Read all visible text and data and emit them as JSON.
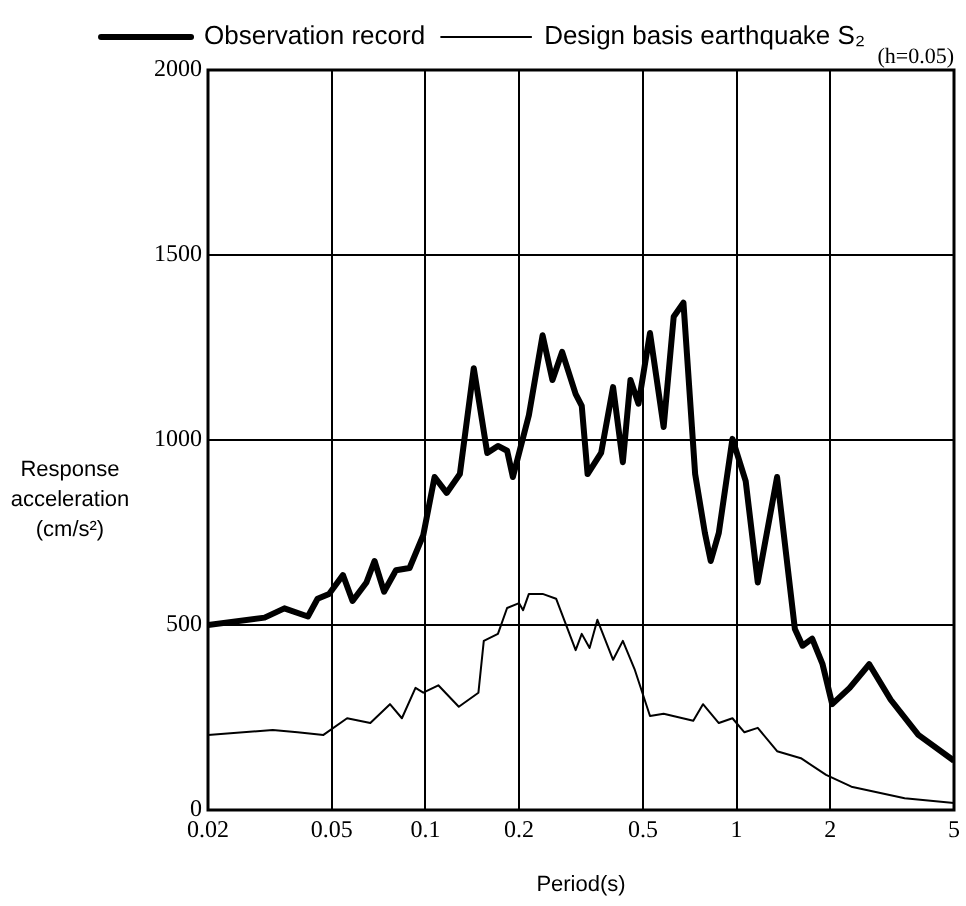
{
  "chart_data": {
    "type": "line",
    "xlabel": "Period(s)",
    "ylabel": "Response acceleration (cm/s²)",
    "annotations": [
      "(h=0.05)"
    ],
    "log": "x",
    "xlim": [
      0.02,
      5
    ],
    "xticks": [
      0.02,
      0.05,
      0.1,
      0.2,
      0.5,
      1,
      2,
      5
    ],
    "ylim": [
      0,
      2000
    ],
    "yticks": [
      0,
      500,
      1000,
      1500,
      2000
    ],
    "grid": true,
    "legend": "top",
    "marker": "none",
    "line_style": "solid",
    "series": [
      {
        "name": "Observation record",
        "color": "#000000",
        "x": [
          0.02,
          0.0304,
          0.0352,
          0.0419,
          0.045,
          0.049,
          0.0543,
          0.0583,
          0.0646,
          0.0686,
          0.0736,
          0.0804,
          0.0889,
          0.0984,
          0.107,
          0.117,
          0.129,
          0.143,
          0.158,
          0.171,
          0.183,
          0.191,
          0.215,
          0.238,
          0.256,
          0.275,
          0.304,
          0.318,
          0.332,
          0.367,
          0.401,
          0.431,
          0.456,
          0.484,
          0.527,
          0.583,
          0.628,
          0.675,
          0.736,
          0.791,
          0.826,
          0.877,
          0.97,
          1.07,
          1.17,
          1.35,
          1.54,
          1.63,
          1.75,
          1.89,
          2.03,
          2.31,
          2.67,
          3.13,
          3.84,
          5
        ],
        "values": [
          500,
          520,
          545,
          523,
          571,
          584,
          635,
          565,
          615,
          673,
          590,
          648,
          654,
          743,
          900,
          857,
          908,
          1194,
          965,
          984,
          971,
          900,
          1067,
          1283,
          1162,
          1238,
          1124,
          1092,
          908,
          965,
          1143,
          940,
          1162,
          1098,
          1289,
          1035,
          1333,
          1371,
          908,
          749,
          673,
          749,
          1003,
          889,
          615,
          900,
          489,
          444,
          463,
          394,
          286,
          330,
          394,
          298,
          203,
          133
        ]
      },
      {
        "name": "Design basis earthquake S₂",
        "color": "#000000",
        "x": [
          0.02,
          0.0323,
          0.0388,
          0.047,
          0.056,
          0.0665,
          0.0769,
          0.084,
          0.0929,
          0.0984,
          0.11,
          0.128,
          0.148,
          0.154,
          0.171,
          0.183,
          0.2,
          0.206,
          0.215,
          0.238,
          0.263,
          0.304,
          0.318,
          0.337,
          0.357,
          0.401,
          0.431,
          0.47,
          0.527,
          0.583,
          0.726,
          0.78,
          0.877,
          0.97,
          1.06,
          1.17,
          1.35,
          1.61,
          1.94,
          2.34,
          3.47,
          5
        ],
        "values": [
          203,
          216,
          210,
          203,
          248,
          235,
          286,
          248,
          330,
          317,
          337,
          279,
          317,
          457,
          476,
          546,
          559,
          540,
          584,
          584,
          571,
          432,
          476,
          438,
          514,
          406,
          457,
          381,
          254,
          260,
          241,
          286,
          235,
          248,
          210,
          222,
          159,
          140,
          95,
          63,
          32,
          19
        ]
      }
    ]
  }
}
